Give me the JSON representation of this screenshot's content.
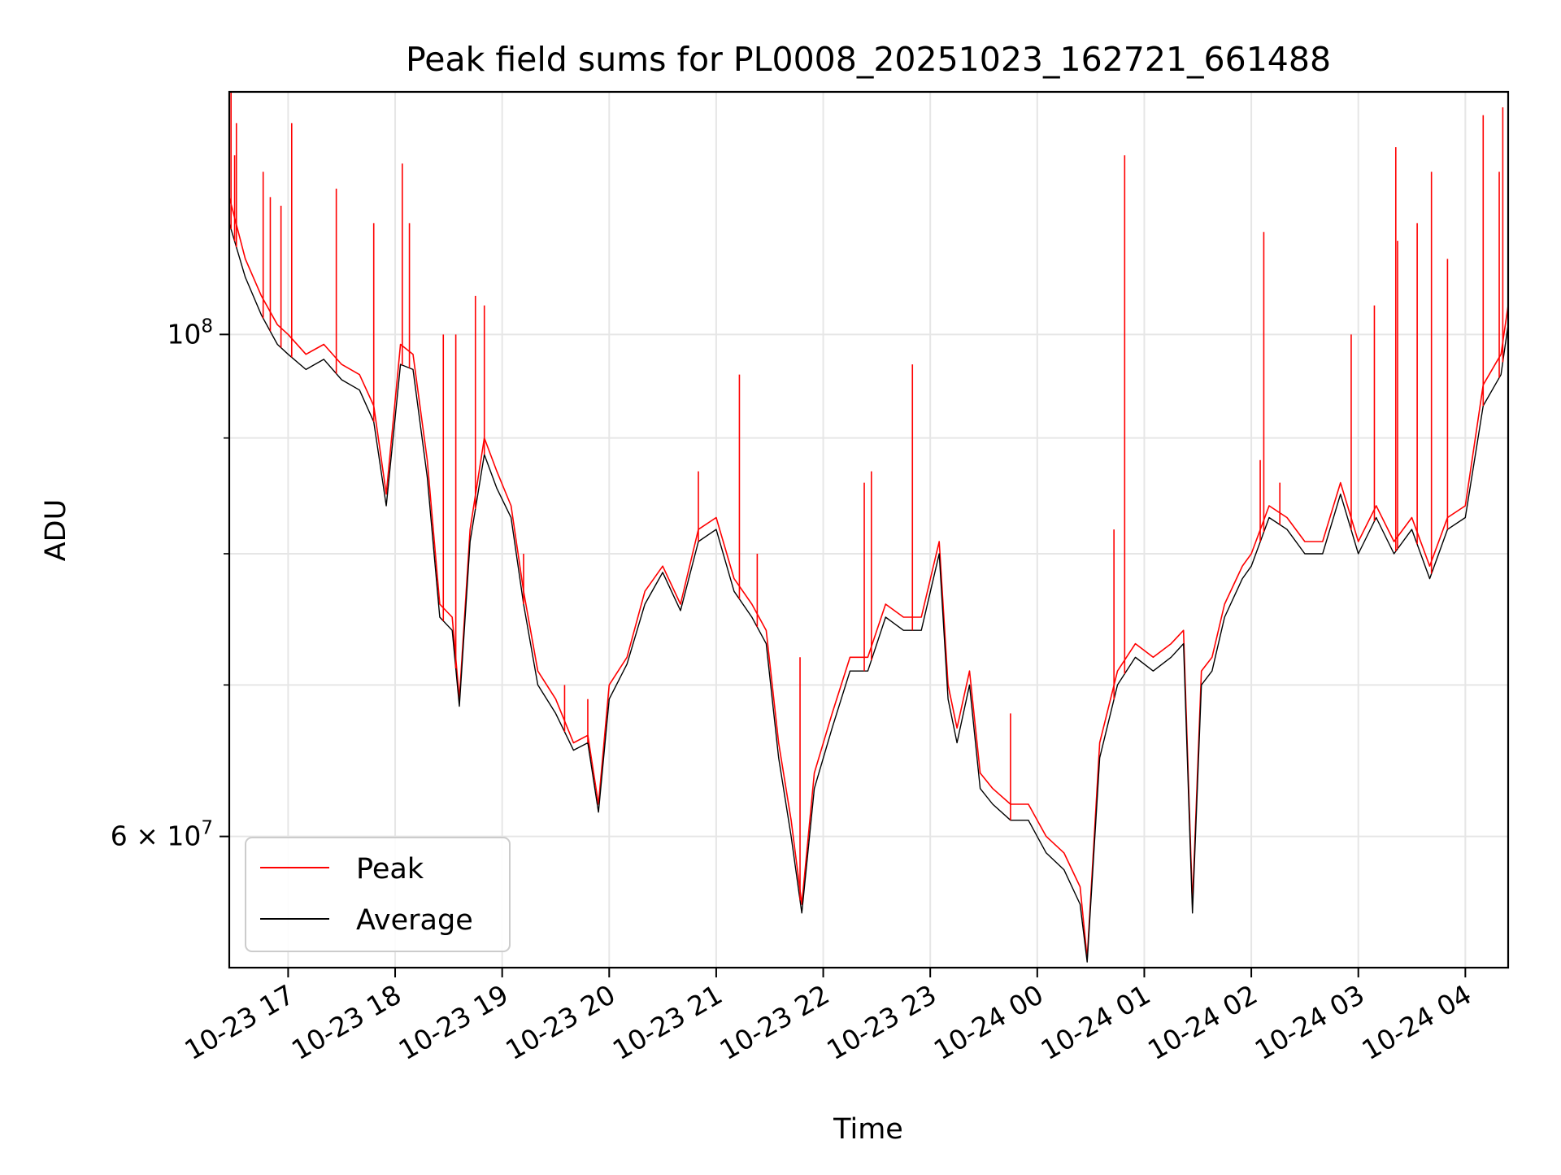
{
  "chart_data": {
    "type": "line",
    "title": "Peak field sums for PL0008_20251023_162721_661488",
    "xlabel": "Time",
    "ylabel": "ADU",
    "yscale": "log",
    "xlim": [
      "2025-10-23 16:27",
      "2025-10-24 04:24"
    ],
    "ylim": [
      52500000,
      128000000
    ],
    "x_ticks": [
      {
        "t": "2025-10-23 17:00",
        "label": "10-23 17"
      },
      {
        "t": "2025-10-23 18:00",
        "label": "10-23 18"
      },
      {
        "t": "2025-10-23 19:00",
        "label": "10-23 19"
      },
      {
        "t": "2025-10-23 20:00",
        "label": "10-23 20"
      },
      {
        "t": "2025-10-23 21:00",
        "label": "10-23 21"
      },
      {
        "t": "2025-10-23 22:00",
        "label": "10-23 22"
      },
      {
        "t": "2025-10-23 23:00",
        "label": "10-23 23"
      },
      {
        "t": "2025-10-24 00:00",
        "label": "10-24 00"
      },
      {
        "t": "2025-10-24 01:00",
        "label": "10-24 01"
      },
      {
        "t": "2025-10-24 02:00",
        "label": "10-24 02"
      },
      {
        "t": "2025-10-24 03:00",
        "label": "10-24 03"
      },
      {
        "t": "2025-10-24 04:00",
        "label": "10-24 04"
      }
    ],
    "y_major_ticks": [
      {
        "v": 100000000,
        "base": "10",
        "exp": "8"
      },
      {
        "v": 60000000,
        "base": "6 × 10",
        "exp": "7"
      }
    ],
    "y_minor_ticks": [
      70000000,
      80000000,
      90000000
    ],
    "grid": true,
    "legend_position": "lower-left",
    "series": [
      {
        "name": "Peak",
        "color": "#ff0000",
        "x": [
          "2025-10-23 16:27",
          "2025-10-23 16:36",
          "2025-10-23 16:45",
          "2025-10-23 16:54",
          "2025-10-23 17:00",
          "2025-10-23 17:10",
          "2025-10-23 17:20",
          "2025-10-23 17:30",
          "2025-10-23 17:40",
          "2025-10-23 17:48",
          "2025-10-23 17:55",
          "2025-10-23 18:03",
          "2025-10-23 18:10",
          "2025-10-23 18:18",
          "2025-10-23 18:25",
          "2025-10-23 18:32",
          "2025-10-23 18:36",
          "2025-10-23 18:42",
          "2025-10-23 18:50",
          "2025-10-23 18:57",
          "2025-10-23 19:05",
          "2025-10-23 19:12",
          "2025-10-23 19:20",
          "2025-10-23 19:30",
          "2025-10-23 19:40",
          "2025-10-23 19:48",
          "2025-10-23 19:54",
          "2025-10-23 20:00",
          "2025-10-23 20:10",
          "2025-10-23 20:20",
          "2025-10-23 20:30",
          "2025-10-23 20:40",
          "2025-10-23 20:50",
          "2025-10-23 21:00",
          "2025-10-23 21:10",
          "2025-10-23 21:20",
          "2025-10-23 21:28",
          "2025-10-23 21:35",
          "2025-10-23 21:42",
          "2025-10-23 21:48",
          "2025-10-23 21:55",
          "2025-10-23 22:05",
          "2025-10-23 22:15",
          "2025-10-23 22:25",
          "2025-10-23 22:35",
          "2025-10-23 22:45",
          "2025-10-23 22:55",
          "2025-10-23 23:05",
          "2025-10-23 23:10",
          "2025-10-23 23:15",
          "2025-10-23 23:22",
          "2025-10-23 23:28",
          "2025-10-23 23:35",
          "2025-10-23 23:45",
          "2025-10-23 23:55",
          "2025-10-24 00:05",
          "2025-10-24 00:15",
          "2025-10-24 00:24",
          "2025-10-24 00:28",
          "2025-10-24 00:35",
          "2025-10-24 00:45",
          "2025-10-24 00:55",
          "2025-10-24 01:05",
          "2025-10-24 01:15",
          "2025-10-24 01:22",
          "2025-10-24 01:27",
          "2025-10-24 01:32",
          "2025-10-24 01:38",
          "2025-10-24 01:45",
          "2025-10-24 01:55",
          "2025-10-24 02:00",
          "2025-10-24 02:10",
          "2025-10-24 02:20",
          "2025-10-24 02:30",
          "2025-10-24 02:40",
          "2025-10-24 02:50",
          "2025-10-24 03:00",
          "2025-10-24 03:10",
          "2025-10-24 03:20",
          "2025-10-24 03:30",
          "2025-10-24 03:40",
          "2025-10-24 03:50",
          "2025-10-24 04:00",
          "2025-10-24 04:10",
          "2025-10-24 04:20",
          "2025-10-24 04:24"
        ],
        "y": [
          115000000,
          108000000,
          104000000,
          101000000,
          100000000,
          98000000,
          99000000,
          97000000,
          96000000,
          93000000,
          85000000,
          99000000,
          98000000,
          88000000,
          76000000,
          75000000,
          69000000,
          82000000,
          90000000,
          87000000,
          84000000,
          77000000,
          71000000,
          69000000,
          66000000,
          66500000,
          62000000,
          70000000,
          72000000,
          77000000,
          79000000,
          76000000,
          82000000,
          83000000,
          78000000,
          76000000,
          74000000,
          66000000,
          61000000,
          56000000,
          64000000,
          68000000,
          72000000,
          72000000,
          76000000,
          75000000,
          75000000,
          81000000,
          70000000,
          67000000,
          71000000,
          64000000,
          63000000,
          62000000,
          62000000,
          60000000,
          59000000,
          57000000,
          53000000,
          66000000,
          71000000,
          73000000,
          72000000,
          73000000,
          74000000,
          56000000,
          71000000,
          72000000,
          76000000,
          79000000,
          80000000,
          84000000,
          83000000,
          81000000,
          81000000,
          86000000,
          81000000,
          84000000,
          81000000,
          83000000,
          79000000,
          83000000,
          84000000,
          95000000,
          98000000,
          103000000
        ]
      },
      {
        "name": "Average",
        "color": "#000000",
        "x": [
          "2025-10-23 16:27",
          "2025-10-23 16:36",
          "2025-10-23 16:45",
          "2025-10-23 16:54",
          "2025-10-23 17:00",
          "2025-10-23 17:10",
          "2025-10-23 17:20",
          "2025-10-23 17:30",
          "2025-10-23 17:40",
          "2025-10-23 17:48",
          "2025-10-23 17:55",
          "2025-10-23 18:03",
          "2025-10-23 18:10",
          "2025-10-23 18:18",
          "2025-10-23 18:25",
          "2025-10-23 18:32",
          "2025-10-23 18:36",
          "2025-10-23 18:42",
          "2025-10-23 18:50",
          "2025-10-23 18:57",
          "2025-10-23 19:05",
          "2025-10-23 19:12",
          "2025-10-23 19:20",
          "2025-10-23 19:30",
          "2025-10-23 19:40",
          "2025-10-23 19:48",
          "2025-10-23 19:54",
          "2025-10-23 20:00",
          "2025-10-23 20:10",
          "2025-10-23 20:20",
          "2025-10-23 20:30",
          "2025-10-23 20:40",
          "2025-10-23 20:50",
          "2025-10-23 21:00",
          "2025-10-23 21:10",
          "2025-10-23 21:20",
          "2025-10-23 21:28",
          "2025-10-23 21:35",
          "2025-10-23 21:42",
          "2025-10-23 21:48",
          "2025-10-23 21:55",
          "2025-10-23 22:05",
          "2025-10-23 22:15",
          "2025-10-23 22:25",
          "2025-10-23 22:35",
          "2025-10-23 22:45",
          "2025-10-23 22:55",
          "2025-10-23 23:05",
          "2025-10-23 23:10",
          "2025-10-23 23:15",
          "2025-10-23 23:22",
          "2025-10-23 23:28",
          "2025-10-23 23:35",
          "2025-10-23 23:45",
          "2025-10-23 23:55",
          "2025-10-24 00:05",
          "2025-10-24 00:15",
          "2025-10-24 00:24",
          "2025-10-24 00:28",
          "2025-10-24 00:35",
          "2025-10-24 00:45",
          "2025-10-24 00:55",
          "2025-10-24 01:05",
          "2025-10-24 01:15",
          "2025-10-24 01:22",
          "2025-10-24 01:27",
          "2025-10-24 01:32",
          "2025-10-24 01:38",
          "2025-10-24 01:45",
          "2025-10-24 01:55",
          "2025-10-24 02:00",
          "2025-10-24 02:10",
          "2025-10-24 02:20",
          "2025-10-24 02:30",
          "2025-10-24 02:40",
          "2025-10-24 02:50",
          "2025-10-24 03:00",
          "2025-10-24 03:10",
          "2025-10-24 03:20",
          "2025-10-24 03:30",
          "2025-10-24 03:40",
          "2025-10-24 03:50",
          "2025-10-24 04:00",
          "2025-10-24 04:10",
          "2025-10-24 04:20",
          "2025-10-24 04:24"
        ],
        "y": [
          112000000,
          106000000,
          102000000,
          99000000,
          98000000,
          96500000,
          97500000,
          95500000,
          94500000,
          91500000,
          84000000,
          97000000,
          96500000,
          86500000,
          75000000,
          74000000,
          68500000,
          81000000,
          88500000,
          85500000,
          83000000,
          76000000,
          70000000,
          68000000,
          65500000,
          66000000,
          61500000,
          69000000,
          71500000,
          76000000,
          78500000,
          75500000,
          81000000,
          82000000,
          77000000,
          75000000,
          73000000,
          65000000,
          60000000,
          55500000,
          63000000,
          67000000,
          71000000,
          71000000,
          75000000,
          74000000,
          74000000,
          80000000,
          69000000,
          66000000,
          70000000,
          63000000,
          62000000,
          61000000,
          61000000,
          59000000,
          58000000,
          56000000,
          52800000,
          65000000,
          70000000,
          72000000,
          71000000,
          72000000,
          73000000,
          55500000,
          70000000,
          71000000,
          75000000,
          78000000,
          79000000,
          83000000,
          82000000,
          80000000,
          80000000,
          85000000,
          80000000,
          83000000,
          80000000,
          82000000,
          78000000,
          82000000,
          83000000,
          93000000,
          96000000,
          101000000
        ]
      }
    ],
    "peak_spikes": [
      {
        "t": "2025-10-23 16:28",
        "y": 128000000
      },
      {
        "t": "2025-10-23 16:30",
        "y": 120000000
      },
      {
        "t": "2025-10-23 16:31",
        "y": 124000000
      },
      {
        "t": "2025-10-23 16:46",
        "y": 118000000
      },
      {
        "t": "2025-10-23 16:50",
        "y": 115000000
      },
      {
        "t": "2025-10-23 16:56",
        "y": 114000000
      },
      {
        "t": "2025-10-23 17:02",
        "y": 124000000
      },
      {
        "t": "2025-10-23 17:27",
        "y": 116000000
      },
      {
        "t": "2025-10-23 17:48",
        "y": 112000000
      },
      {
        "t": "2025-10-23 18:04",
        "y": 119000000
      },
      {
        "t": "2025-10-23 18:08",
        "y": 112000000
      },
      {
        "t": "2025-10-23 18:27",
        "y": 100000000
      },
      {
        "t": "2025-10-23 18:34",
        "y": 100000000
      },
      {
        "t": "2025-10-23 18:45",
        "y": 104000000
      },
      {
        "t": "2025-10-23 18:50",
        "y": 103000000
      },
      {
        "t": "2025-10-23 19:12",
        "y": 80000000
      },
      {
        "t": "2025-10-23 19:35",
        "y": 70000000
      },
      {
        "t": "2025-10-23 19:48",
        "y": 69000000
      },
      {
        "t": "2025-10-23 20:50",
        "y": 87000000
      },
      {
        "t": "2025-10-23 21:13",
        "y": 96000000
      },
      {
        "t": "2025-10-23 21:23",
        "y": 80000000
      },
      {
        "t": "2025-10-23 21:47",
        "y": 72000000
      },
      {
        "t": "2025-10-23 22:23",
        "y": 86000000
      },
      {
        "t": "2025-10-23 22:27",
        "y": 87000000
      },
      {
        "t": "2025-10-23 22:50",
        "y": 97000000
      },
      {
        "t": "2025-10-23 23:45",
        "y": 68000000
      },
      {
        "t": "2025-10-24 00:43",
        "y": 82000000
      },
      {
        "t": "2025-10-24 00:49",
        "y": 120000000
      },
      {
        "t": "2025-10-24 02:05",
        "y": 88000000
      },
      {
        "t": "2025-10-24 02:07",
        "y": 111000000
      },
      {
        "t": "2025-10-24 02:16",
        "y": 86000000
      },
      {
        "t": "2025-10-24 02:56",
        "y": 100000000
      },
      {
        "t": "2025-10-24 03:09",
        "y": 103000000
      },
      {
        "t": "2025-10-24 03:21",
        "y": 121000000
      },
      {
        "t": "2025-10-24 03:22",
        "y": 110000000
      },
      {
        "t": "2025-10-24 03:33",
        "y": 112000000
      },
      {
        "t": "2025-10-24 03:41",
        "y": 118000000
      },
      {
        "t": "2025-10-24 03:50",
        "y": 108000000
      },
      {
        "t": "2025-10-24 04:10",
        "y": 125000000
      },
      {
        "t": "2025-10-24 04:19",
        "y": 118000000
      },
      {
        "t": "2025-10-24 04:21",
        "y": 126000000
      }
    ],
    "legend": [
      {
        "label": "Peak",
        "color": "#ff0000"
      },
      {
        "label": "Average",
        "color": "#000000"
      }
    ]
  }
}
